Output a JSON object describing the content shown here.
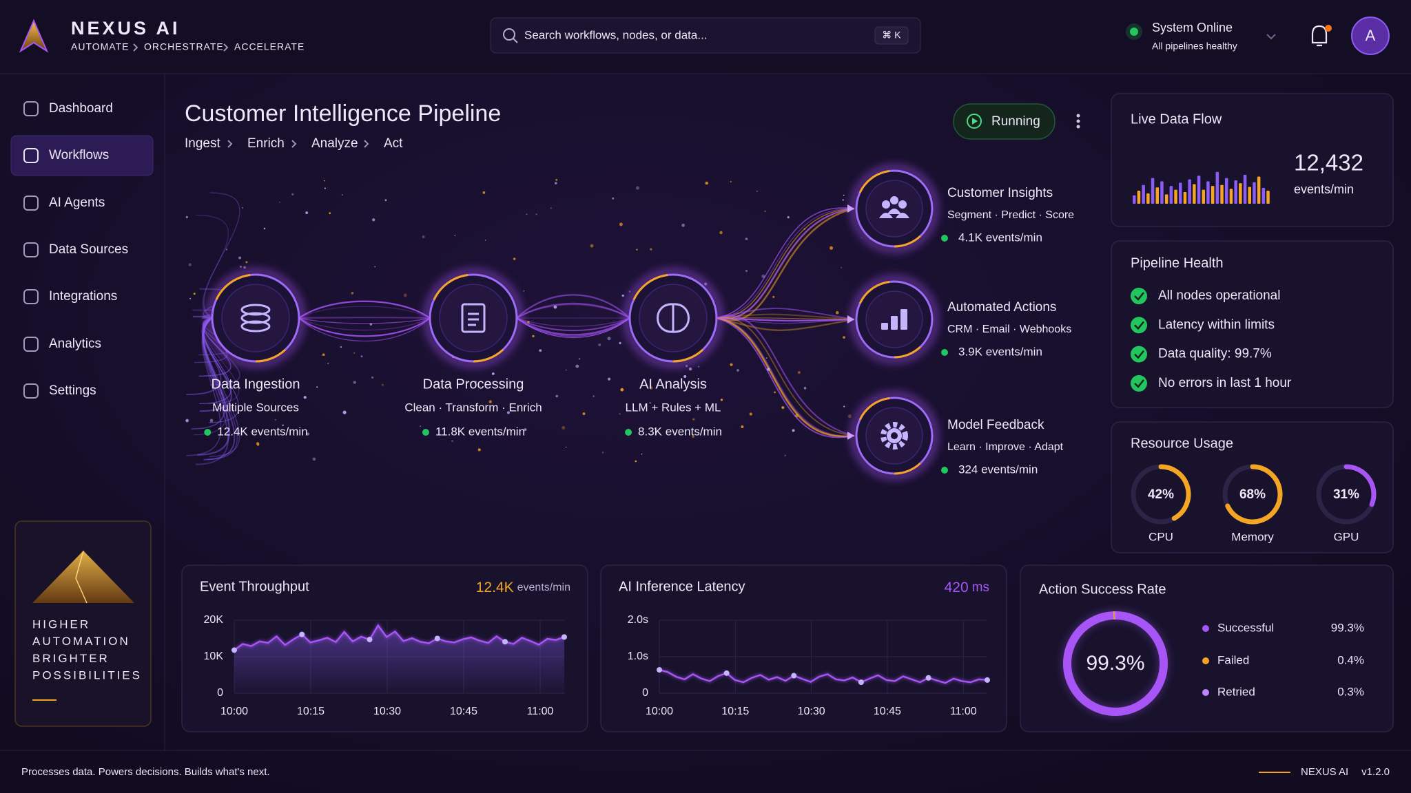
{
  "header": {
    "brand": "NEXUS AI",
    "tagline": [
      "AUTOMATE",
      "ORCHESTRATE",
      "ACCELERATE"
    ],
    "search_placeholder": "Search workflows, nodes, or data...",
    "shortcut": "⌘ K",
    "status": "System Online",
    "status_detail": "All pipelines healthy",
    "avatar": "A"
  },
  "sidebar": {
    "items": [
      "Dashboard",
      "Workflows",
      "AI Agents",
      "Data Sources",
      "Integrations",
      "Analytics",
      "Settings"
    ],
    "active": 1,
    "promo": [
      "HIGHER",
      "AUTOMATION",
      "BRIGHTER",
      "POSSIBILITIES"
    ]
  },
  "pipeline": {
    "title": "Customer Intelligence Pipeline",
    "status": "Running",
    "breadcrumb": [
      "Ingest",
      "Enrich",
      "Analyze",
      "Act"
    ],
    "stages": [
      {
        "name": "Data Ingestion",
        "detail": "Multiple Sources",
        "rate": "12.4K events/min"
      },
      {
        "name": "Data Processing",
        "detail": "Clean · Transform · Enrich",
        "rate": "11.8K events/min"
      },
      {
        "name": "AI Analysis",
        "detail": "LLM + Rules + ML",
        "rate": "8.3K events/min"
      }
    ],
    "outputs": [
      {
        "name": "Customer Insights",
        "detail": "Segment · Predict · Score",
        "rate": "4.1K events/min"
      },
      {
        "name": "Automated Actions",
        "detail": "CRM · Email · Webhooks",
        "rate": "3.9K events/min"
      },
      {
        "name": "Model Feedback",
        "detail": "Learn · Improve · Adapt",
        "rate": "324 events/min"
      }
    ]
  },
  "live_flow": {
    "title": "Live Data Flow",
    "value": "12,432",
    "unit": "events/min",
    "bars": [
      18,
      28,
      40,
      22,
      55,
      35,
      48,
      20,
      38,
      30,
      45,
      25,
      52,
      42,
      60,
      30,
      48,
      38,
      68,
      40,
      55,
      32,
      50,
      44,
      62,
      36,
      46,
      58,
      34,
      28
    ],
    "colors": [
      "#8b5cf6",
      "#f5a524"
    ]
  },
  "health": {
    "title": "Pipeline Health",
    "items": [
      "All nodes operational",
      "Latency within limits",
      "Data quality: 99.7%",
      "No errors in last 1 hour"
    ]
  },
  "resources": {
    "title": "Resource Usage",
    "gauges": [
      {
        "label": "CPU",
        "value": 42,
        "value_label": "42%",
        "color": "#f5a524"
      },
      {
        "label": "Memory",
        "value": 68,
        "value_label": "68%",
        "color": "#f5a524"
      },
      {
        "label": "GPU",
        "value": 31,
        "value_label": "31%",
        "color": "#a855f7"
      }
    ]
  },
  "throughput": {
    "type": "line",
    "title": "Event Throughput",
    "headline": "12.4K",
    "headline_unit": "events/min",
    "color": "#a855f7",
    "ylim": [
      0,
      20000
    ],
    "yticks": [
      0,
      {
        "value": 10000,
        "label": "10K"
      },
      {
        "value": 20000,
        "label": "20K"
      }
    ],
    "xlabels": [
      "10:00",
      "10:15",
      "10:30",
      "10:45",
      "11:00"
    ],
    "values": [
      11800,
      13500,
      12900,
      14200,
      13800,
      15600,
      13200,
      14800,
      16100,
      13900,
      14500,
      15200,
      14000,
      16800,
      14200,
      15500,
      14700,
      18600,
      15400,
      16900,
      14300,
      15100,
      14100,
      13700,
      15000,
      14200,
      13900,
      14800,
      15300,
      14400,
      13800,
      15600,
      14100,
      13500,
      15200,
      14300,
      13300,
      14900,
      14600,
      15400
    ]
  },
  "latency": {
    "type": "line",
    "title": "AI Inference Latency",
    "headline": "420",
    "headline_unit": "ms",
    "color": "#a855f7",
    "ylim": [
      0,
      2
    ],
    "yticks": [
      0,
      {
        "value": 1,
        "label": "1.0s"
      },
      {
        "value": 2,
        "label": "2.0s"
      }
    ],
    "xlabels": [
      "10:00",
      "10:15",
      "10:30",
      "10:45",
      "11:00"
    ],
    "values": [
      0.64,
      0.58,
      0.45,
      0.38,
      0.52,
      0.4,
      0.33,
      0.47,
      0.55,
      0.36,
      0.3,
      0.42,
      0.5,
      0.37,
      0.44,
      0.34,
      0.48,
      0.39,
      0.31,
      0.45,
      0.52,
      0.38,
      0.35,
      0.43,
      0.3,
      0.4,
      0.49,
      0.36,
      0.33,
      0.46,
      0.38,
      0.3,
      0.42,
      0.35,
      0.28,
      0.4,
      0.33,
      0.3,
      0.38,
      0.36
    ]
  },
  "success": {
    "type": "pie",
    "title": "Action Success Rate",
    "series": [
      {
        "name": "Successful",
        "value": 99.3,
        "value_label": "99.3%",
        "color": "#a855f7"
      },
      {
        "name": "Failed",
        "value": 0.4,
        "value_label": "0.4%",
        "color": "#f5a524"
      },
      {
        "name": "Retried",
        "value": 0.3,
        "value_label": "0.3%",
        "color": "#c084fc"
      }
    ]
  },
  "footer": {
    "tagline": "Processes data. Powers decisions. Builds what's next.",
    "brand": "NEXUS AI",
    "version": "v1.2.0"
  }
}
